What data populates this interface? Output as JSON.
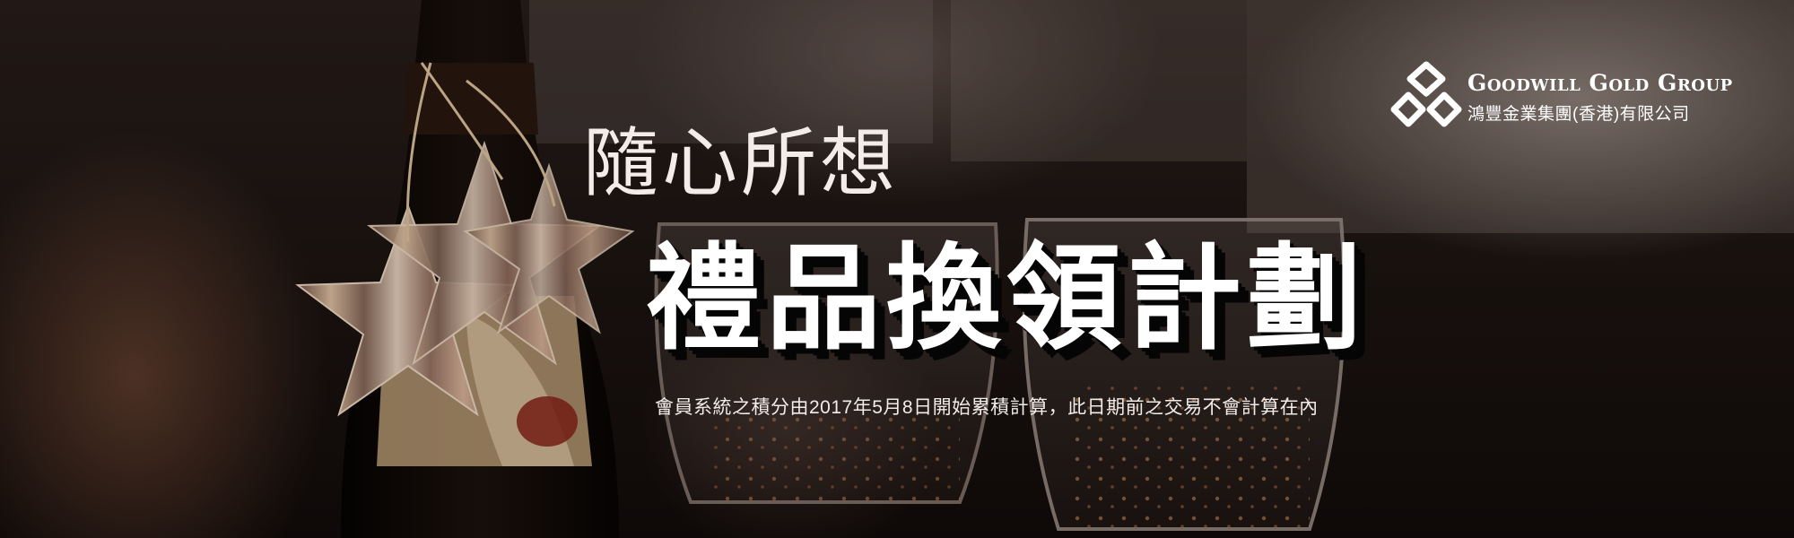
{
  "banner": {
    "subtitle": "隨心所想",
    "title": "禮品換領計劃",
    "description": "會員系統之積分由2017年5月8日開始累積計算，此日期前之交易不會計算在內"
  },
  "logo": {
    "name_en": "Goodwill Gold Group",
    "name_zh": "鴻豐金業集團(香港)有限公司",
    "icon": "logo-mark-icon"
  },
  "colors": {
    "text": "#ffffff",
    "title_shadow": "#050505",
    "background": "#1c1411"
  }
}
